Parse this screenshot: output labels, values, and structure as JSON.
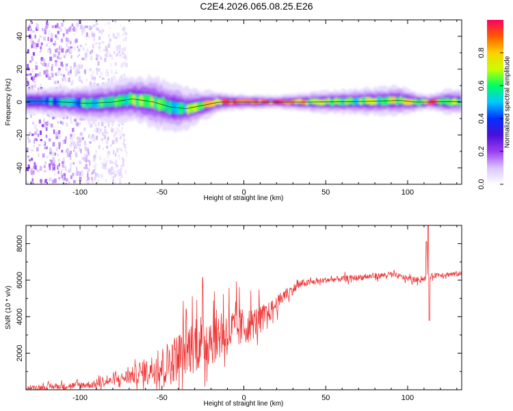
{
  "title": "C2E4.2026.065.08.25.E26",
  "chart_data": [
    {
      "type": "heatmap",
      "name": "spectrogram",
      "xlabel": "Height of straight line (km)",
      "ylabel": "Frequency (Hz)",
      "xlim": [
        -133,
        133
      ],
      "ylim": [
        -50,
        50
      ],
      "x_ticks": [
        -100,
        -50,
        0,
        50,
        100
      ],
      "x_tick_labels": [
        "-100",
        "-50",
        "0",
        "50",
        "100"
      ],
      "y_ticks": [
        -40,
        -20,
        0,
        20,
        40
      ],
      "y_tick_labels": [
        "-40",
        "-20",
        "0",
        "20",
        "40"
      ],
      "colorbar": {
        "label": "Normalized spectral amplitude",
        "range": [
          0,
          1
        ],
        "ticks": [
          0.0,
          0.2,
          0.4,
          0.6,
          0.8
        ],
        "tick_labels": [
          "0.0",
          "0.2",
          "0.4",
          "0.6",
          "0.8"
        ],
        "colors": [
          "#ffffff",
          "#d9c4ff",
          "#9b3df0",
          "#4a10d8",
          "#0030ff",
          "#00c8ff",
          "#00ff60",
          "#c8ff00",
          "#ffd000",
          "#ff5a00",
          "#ff0060"
        ]
      },
      "ridge": [
        {
          "x": -123,
          "f": 0.5,
          "width": 2.5,
          "amp": 0.5
        },
        {
          "x": -110,
          "f": 0.0,
          "width": 3.0,
          "amp": 0.5
        },
        {
          "x": -95,
          "f": -0.8,
          "width": 3.5,
          "amp": 0.52
        },
        {
          "x": -80,
          "f": 0.0,
          "width": 4.0,
          "amp": 0.55
        },
        {
          "x": -68,
          "f": 2.0,
          "width": 4.5,
          "amp": 0.6
        },
        {
          "x": -55,
          "f": 0.0,
          "width": 5.0,
          "amp": 0.62
        },
        {
          "x": -45,
          "f": -3.0,
          "width": 5.0,
          "amp": 0.6
        },
        {
          "x": -35,
          "f": -4.0,
          "width": 4.0,
          "amp": 0.62
        },
        {
          "x": -25,
          "f": -2.0,
          "width": 3.0,
          "amp": 0.7
        },
        {
          "x": -15,
          "f": 0.0,
          "width": 2.0,
          "amp": 0.82
        },
        {
          "x": 0,
          "f": 0.0,
          "width": 1.5,
          "amp": 0.9
        },
        {
          "x": 20,
          "f": 0.0,
          "width": 1.3,
          "amp": 0.9
        },
        {
          "x": 40,
          "f": 0.0,
          "width": 2.0,
          "amp": 0.72
        },
        {
          "x": 60,
          "f": 0.2,
          "width": 2.5,
          "amp": 0.62
        },
        {
          "x": 80,
          "f": 0.5,
          "width": 2.8,
          "amp": 0.62
        },
        {
          "x": 95,
          "f": 1.0,
          "width": 3.0,
          "amp": 0.72
        },
        {
          "x": 105,
          "f": 0.0,
          "width": 2.0,
          "amp": 0.6
        },
        {
          "x": 113,
          "f": 0.0,
          "width": 1.5,
          "amp": 0.9
        },
        {
          "x": 125,
          "f": 0.3,
          "width": 2.5,
          "amp": 0.62
        },
        {
          "x": 133,
          "f": 0.3,
          "width": 2.5,
          "amp": 0.62
        }
      ],
      "noise_region_x": [
        -133,
        -72
      ]
    },
    {
      "type": "line",
      "name": "snr",
      "xlabel": "Height of straight line (km)",
      "ylabel": "SNR (10 * v/v)",
      "xlim": [
        -133,
        133
      ],
      "ylim": [
        0,
        9000
      ],
      "x_ticks": [
        -100,
        -50,
        0,
        50,
        100
      ],
      "x_tick_labels": [
        "-100",
        "-50",
        "0",
        "50",
        "100"
      ],
      "y_ticks": [
        2000,
        4000,
        6000,
        8000
      ],
      "y_tick_labels": [
        "2000",
        "4000",
        "6000",
        "8000"
      ],
      "color": "#ee3333",
      "baseline": [
        {
          "x": -133,
          "y": 100
        },
        {
          "x": -110,
          "y": 200
        },
        {
          "x": -90,
          "y": 300
        },
        {
          "x": -75,
          "y": 600
        },
        {
          "x": -60,
          "y": 1000
        },
        {
          "x": -45,
          "y": 1500
        },
        {
          "x": -35,
          "y": 2200
        },
        {
          "x": -25,
          "y": 2700
        },
        {
          "x": -15,
          "y": 3000
        },
        {
          "x": -5,
          "y": 3300
        },
        {
          "x": 5,
          "y": 3600
        },
        {
          "x": 15,
          "y": 4200
        },
        {
          "x": 25,
          "y": 5200
        },
        {
          "x": 35,
          "y": 5800
        },
        {
          "x": 50,
          "y": 6000
        },
        {
          "x": 70,
          "y": 6150
        },
        {
          "x": 90,
          "y": 6300
        },
        {
          "x": 105,
          "y": 6000
        },
        {
          "x": 110,
          "y": 6100
        },
        {
          "x": 118,
          "y": 6300
        },
        {
          "x": 133,
          "y": 6350
        }
      ],
      "amplitude": [
        {
          "x": -133,
          "a": 150
        },
        {
          "x": -80,
          "a": 350
        },
        {
          "x": -60,
          "a": 900
        },
        {
          "x": -45,
          "a": 1800
        },
        {
          "x": -25,
          "a": 2300
        },
        {
          "x": -10,
          "a": 1900
        },
        {
          "x": 5,
          "a": 1300
        },
        {
          "x": 20,
          "a": 600
        },
        {
          "x": 40,
          "a": 250
        },
        {
          "x": 133,
          "a": 200
        }
      ],
      "spikes": [
        {
          "x": 111.5,
          "y": 8100
        },
        {
          "x": 112.5,
          "y": 9000
        },
        {
          "x": 113.2,
          "y": 3800
        }
      ]
    }
  ]
}
